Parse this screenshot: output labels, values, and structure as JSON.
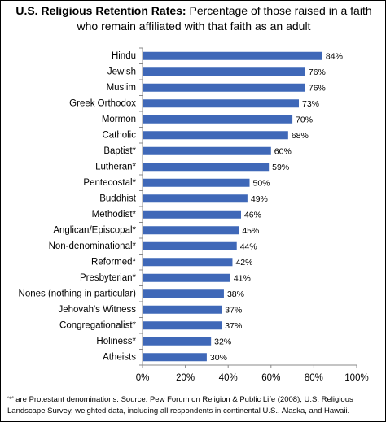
{
  "chart_data": {
    "type": "bar",
    "orientation": "horizontal",
    "title": "U.S. Religious Retention Rates:",
    "subtitle": "Percentage of those raised in a faith who remain affiliated with that faith as an adult",
    "categories": [
      "Hindu",
      "Jewish",
      "Muslim",
      "Greek Orthodox",
      "Mormon",
      "Catholic",
      "Baptist*",
      "Lutheran*",
      "Pentecostal*",
      "Buddhist",
      "Methodist*",
      "Anglican/Episcopal*",
      "Non-denominational*",
      "Reformed*",
      "Presbyterian*",
      "Nones (nothing in particular)",
      "Jehovah's Witness",
      "Congregationalist*",
      "Holiness*",
      "Atheists"
    ],
    "values": [
      84,
      76,
      76,
      73,
      70,
      68,
      60,
      59,
      50,
      49,
      46,
      45,
      44,
      42,
      41,
      38,
      37,
      37,
      32,
      30
    ],
    "value_labels": [
      "84%",
      "76%",
      "76%",
      "73%",
      "70%",
      "68%",
      "60%",
      "59%",
      "50%",
      "49%",
      "46%",
      "45%",
      "44%",
      "42%",
      "41%",
      "38%",
      "37%",
      "37%",
      "32%",
      "30%"
    ],
    "color": "#3f68b8",
    "xlim": [
      0,
      100
    ],
    "xticks": [
      {
        "value": 0,
        "label": "0%"
      },
      {
        "value": 20,
        "label": "20%"
      },
      {
        "value": 40,
        "label": "40%"
      },
      {
        "value": 60,
        "label": "60%"
      },
      {
        "value": 80,
        "label": "80%"
      },
      {
        "value": 100,
        "label": "100%"
      }
    ],
    "note": "‘*’ are Protestant denominations. Source: Pew Forum on Religion & Public Life (2008), U.S. Religious Landscape Survey, weighted data, including all respondents in continental U.S., Alaska, and Hawaii."
  }
}
